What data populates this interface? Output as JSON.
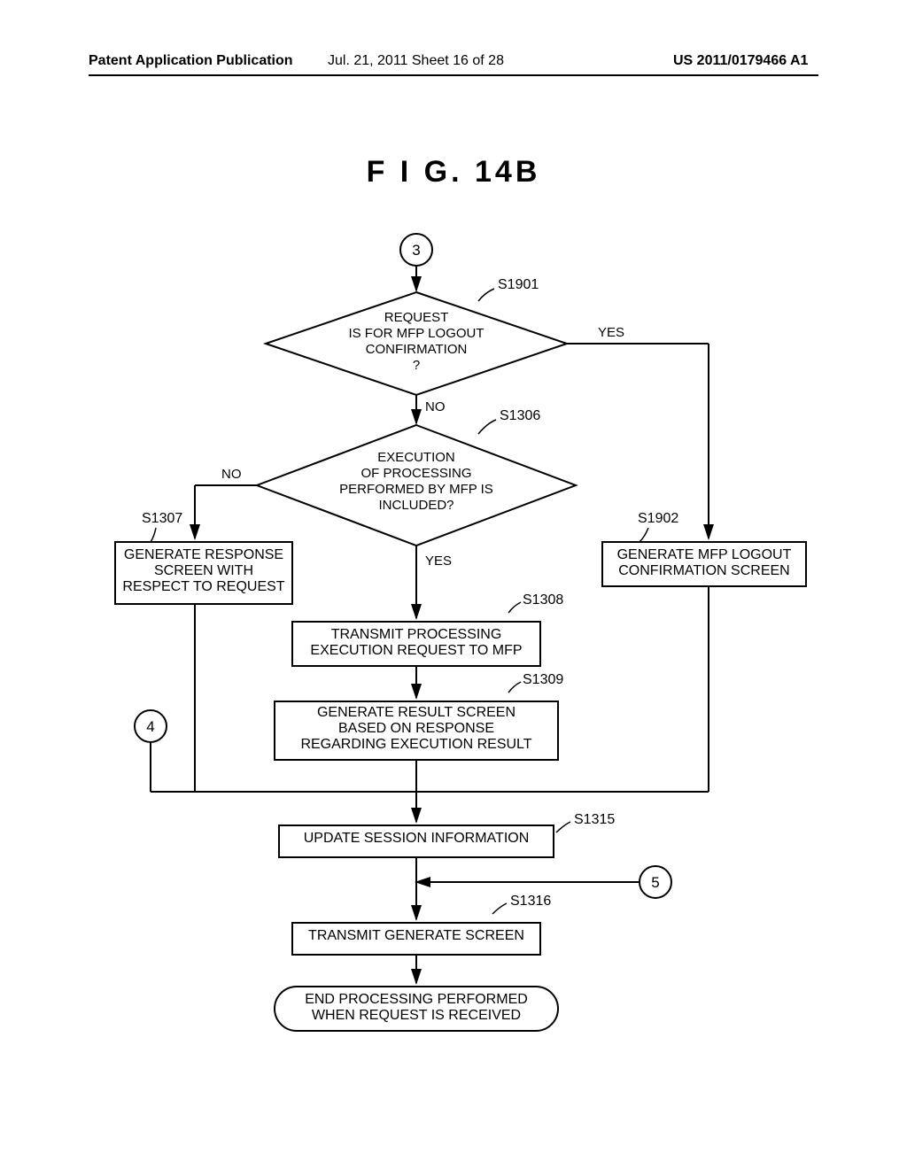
{
  "header": {
    "left": "Patent Application Publication",
    "mid": "Jul. 21, 2011  Sheet 16 of 28",
    "right": "US 2011/0179466 A1"
  },
  "figure_title": "F I G.  14B",
  "connectors": {
    "c3": "3",
    "c4": "4",
    "c5": "5"
  },
  "steps": {
    "s1901": {
      "ref": "S1901",
      "text": "REQUEST\nIS FOR MFP LOGOUT\nCONFIRMATION\n?"
    },
    "s1306": {
      "ref": "S1306",
      "text": "EXECUTION\nOF PROCESSING\nPERFORMED BY MFP IS\nINCLUDED?"
    },
    "s1307": {
      "ref": "S1307",
      "text": "GENERATE RESPONSE\nSCREEN WITH\nRESPECT TO REQUEST"
    },
    "s1902": {
      "ref": "S1902",
      "text": "GENERATE MFP LOGOUT\nCONFIRMATION SCREEN"
    },
    "s1308": {
      "ref": "S1308",
      "text": "TRANSMIT PROCESSING\nEXECUTION REQUEST TO MFP"
    },
    "s1309": {
      "ref": "S1309",
      "text": "GENERATE RESULT SCREEN\nBASED ON RESPONSE\nREGARDING EXECUTION RESULT"
    },
    "s1315": {
      "ref": "S1315",
      "text": "UPDATE SESSION INFORMATION"
    },
    "s1316": {
      "ref": "S1316",
      "text": "TRANSMIT GENERATE SCREEN"
    },
    "end": {
      "text": "END PROCESSING PERFORMED\nWHEN REQUEST IS RECEIVED"
    }
  },
  "branches": {
    "yes": "YES",
    "no": "NO"
  },
  "style": {
    "stroke": "#000000",
    "stroke_width": 2,
    "font_family": "Arial",
    "diamond_fill": "#ffffff",
    "box_fill": "#ffffff",
    "connector_radius": 18
  }
}
